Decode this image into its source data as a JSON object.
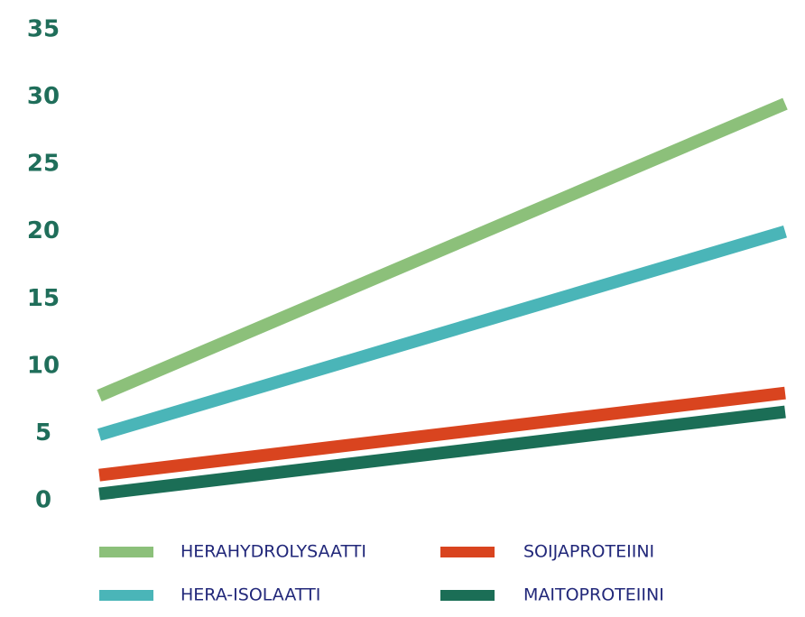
{
  "chart_data": {
    "type": "line",
    "categories": [
      null,
      null
    ],
    "series": [
      {
        "name": "HERAHYDROLYSAATTI",
        "color": "#8cc07a",
        "values": [
          7.8,
          29.5
        ]
      },
      {
        "name": "SOIJAPROTEIINI",
        "color": "#d9441f",
        "values": [
          1.9,
          8.0
        ]
      },
      {
        "name": "HERA-ISOLAATTI",
        "color": "#4ab5b8",
        "values": [
          4.9,
          20.0
        ]
      },
      {
        "name": "MAITOPROTEIINI",
        "color": "#1b6e56",
        "values": [
          0.5,
          6.6
        ]
      }
    ],
    "ylim": [
      0,
      35
    ],
    "yticks": [
      0,
      5,
      10,
      15,
      20,
      25,
      30,
      35
    ],
    "grid": false
  }
}
